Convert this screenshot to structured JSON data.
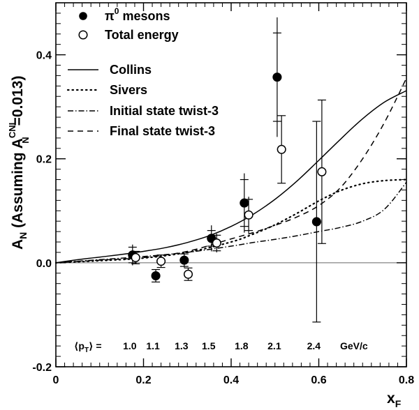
{
  "chart_data": {
    "type": "scatter",
    "xlim": [
      0,
      0.8
    ],
    "ylim": [
      -0.2,
      0.5
    ],
    "x_ticks": [
      0,
      0.2,
      0.4,
      0.6,
      0.8
    ],
    "x_tick_labels": [
      "0",
      "0.2",
      "0.4",
      "0.6",
      "0.8"
    ],
    "y_ticks": [
      -0.2,
      0.0,
      0.2,
      0.4
    ],
    "y_tick_labels": [
      "-0.2",
      "0.0",
      "0.2",
      "0.4"
    ],
    "xlabel": {
      "main": "x",
      "sub": "F"
    },
    "ylabel": {
      "a": "A",
      "a_sub": "N",
      "assuming": " (Assuming A",
      "cni_sup": "CNI",
      "cni_sub": "N",
      "value": "=0.013)"
    },
    "zero_line": true,
    "grid": false,
    "legend_position": "top-left",
    "legend": {
      "pi0": {
        "symbol": "π",
        "sup": "0",
        "text": " mesons"
      },
      "total": "Total energy",
      "collins": "Collins",
      "sivers": "Sivers",
      "initial": "Initial state twist-3",
      "final": "Final state twist-3"
    },
    "pt_annotation": {
      "label_open": "⟨p",
      "label_sub": "T",
      "label_close": "⟩ =",
      "values": [
        "1.0",
        "1.1",
        "1.3",
        "1.5",
        "1.8",
        "2.1",
        "2.4"
      ],
      "unit": "GeV/c"
    },
    "series": [
      {
        "name": "π0 mesons",
        "marker": "filled-circle",
        "points": [
          {
            "x": 0.175,
            "y": 0.015,
            "stat": 0.015,
            "sys": 0.02
          },
          {
            "x": 0.228,
            "y": -0.025,
            "stat": 0.012,
            "sys": 0.012
          },
          {
            "x": 0.293,
            "y": 0.005,
            "stat": 0.012,
            "sys": 0.014
          },
          {
            "x": 0.355,
            "y": 0.047,
            "stat": 0.015,
            "sys": 0.025
          },
          {
            "x": 0.43,
            "y": 0.115,
            "stat": 0.045,
            "sys": 0.057
          },
          {
            "x": 0.505,
            "y": 0.357,
            "stat": 0.085,
            "sys": 0.115
          },
          {
            "x": 0.595,
            "y": 0.079,
            "stat": 0.193,
            "sys": 0.193
          }
        ]
      },
      {
        "name": "Total energy",
        "marker": "open-circle",
        "points": [
          {
            "x": 0.182,
            "y": 0.01,
            "stat": 0.012,
            "sys": 0.012
          },
          {
            "x": 0.24,
            "y": 0.003,
            "stat": 0.012,
            "sys": 0.012
          },
          {
            "x": 0.302,
            "y": -0.022,
            "stat": 0.012,
            "sys": 0.012
          },
          {
            "x": 0.367,
            "y": 0.038,
            "stat": 0.015,
            "sys": 0.018
          },
          {
            "x": 0.44,
            "y": 0.092,
            "stat": 0.03,
            "sys": 0.035
          },
          {
            "x": 0.515,
            "y": 0.218,
            "stat": 0.065,
            "sys": 0.065
          },
          {
            "x": 0.607,
            "y": 0.175,
            "stat": 0.138,
            "sys": 0.138
          }
        ]
      }
    ],
    "curves": [
      {
        "name": "Collins",
        "style": "solid",
        "x": [
          0,
          0.05,
          0.1,
          0.15,
          0.2,
          0.25,
          0.3,
          0.35,
          0.4,
          0.45,
          0.5,
          0.55,
          0.6,
          0.65,
          0.7,
          0.75,
          0.8
        ],
        "y": [
          0,
          0.006,
          0.011,
          0.016,
          0.022,
          0.029,
          0.039,
          0.052,
          0.07,
          0.093,
          0.122,
          0.157,
          0.197,
          0.238,
          0.277,
          0.309,
          0.331
        ]
      },
      {
        "name": "Sivers",
        "style": "dotted",
        "x": [
          0,
          0.1,
          0.2,
          0.3,
          0.4,
          0.45,
          0.5,
          0.55,
          0.6,
          0.65,
          0.7,
          0.75,
          0.8
        ],
        "y": [
          0,
          0.004,
          0.009,
          0.02,
          0.04,
          0.055,
          0.073,
          0.095,
          0.119,
          0.139,
          0.152,
          0.158,
          0.16
        ]
      },
      {
        "name": "Initial state twist-3",
        "style": "dash-dot",
        "x": [
          0,
          0.1,
          0.2,
          0.3,
          0.4,
          0.45,
          0.5,
          0.55,
          0.6,
          0.65,
          0.7,
          0.75,
          0.8
        ],
        "y": [
          0,
          0.006,
          0.012,
          0.02,
          0.032,
          0.039,
          0.045,
          0.052,
          0.06,
          0.068,
          0.08,
          0.103,
          0.155
        ]
      },
      {
        "name": "Final state twist-3",
        "style": "dashed",
        "x": [
          0,
          0.1,
          0.2,
          0.3,
          0.4,
          0.45,
          0.5,
          0.55,
          0.6,
          0.65,
          0.7,
          0.75,
          0.8
        ],
        "y": [
          0,
          0.005,
          0.01,
          0.022,
          0.046,
          0.058,
          0.072,
          0.088,
          0.11,
          0.145,
          0.2,
          0.27,
          0.355
        ]
      }
    ]
  }
}
